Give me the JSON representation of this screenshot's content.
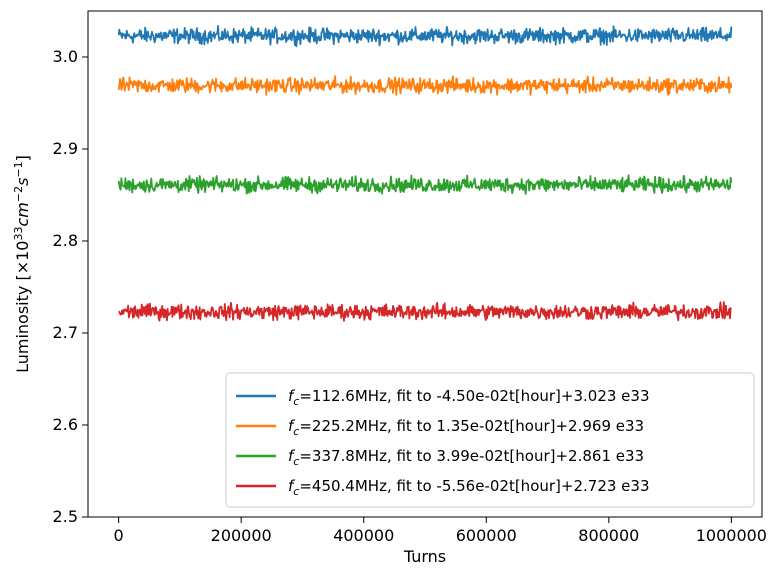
{
  "chart_data": {
    "type": "line",
    "title": "",
    "xlabel": "Turns",
    "ylabel": "Luminosity [×10",
    "ylabel_sup1": "33",
    "ylabel_mid1": "cm",
    "ylabel_sup2": "−2",
    "ylabel_mid2": "s",
    "ylabel_sup3": "−1",
    "ylabel_end": "]",
    "xlim": [
      -50000,
      1050000
    ],
    "ylim": [
      2.5,
      3.05
    ],
    "xticks": [
      0,
      200000,
      400000,
      600000,
      800000,
      1000000
    ],
    "xtick_labels": [
      "0",
      "200000",
      "400000",
      "600000",
      "800000",
      "1000000"
    ],
    "yticks": [
      2.5,
      2.6,
      2.7,
      2.8,
      2.9,
      3.0
    ],
    "ytick_labels": [
      "2.5",
      "2.6",
      "2.7",
      "2.8",
      "2.9",
      "3.0"
    ],
    "grid": false,
    "legend_position": "bottom-right",
    "x_range": [
      0,
      1000000
    ],
    "noise_amplitude": 0.004,
    "series": [
      {
        "name": "=112.6MHz, fit to -4.50e-02t[hour]+3.023 e33",
        "mean": 3.023,
        "color": "#1f77b4"
      },
      {
        "name": "=225.2MHz, fit to 1.35e-02t[hour]+2.969 e33",
        "mean": 2.969,
        "color": "#ff7f0e"
      },
      {
        "name": "=337.8MHz, fit to 3.99e-02t[hour]+2.861 e33",
        "mean": 2.861,
        "color": "#2ca02c"
      },
      {
        "name": "=450.4MHz, fit to -5.56e-02t[hour]+2.723 e33",
        "mean": 2.723,
        "color": "#d62728"
      }
    ],
    "legend_symbol": "f",
    "legend_symbol_sub": "c"
  }
}
